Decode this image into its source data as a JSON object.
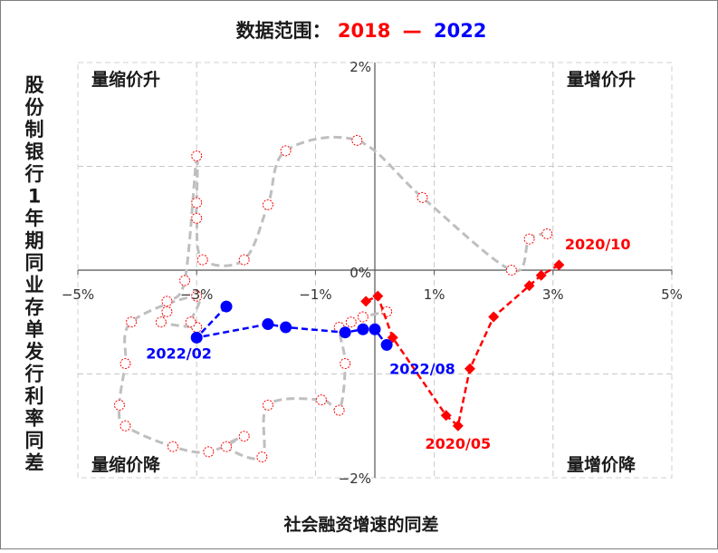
{
  "chart_data": {
    "type": "scatter",
    "title_prefix": "数据范围：",
    "title_start": "2018",
    "title_sep": "—",
    "title_end": "2022",
    "xlabel": "社会融资增速的同差",
    "ylabel": "股份制银行1年期同业存单发行利率同差",
    "xlim": [
      -5,
      5
    ],
    "ylim": [
      -2,
      2
    ],
    "x_ticks": [
      {
        "v": -5,
        "label": "−5%"
      },
      {
        "v": -3,
        "label": "−3%"
      },
      {
        "v": -1,
        "label": "−1%"
      },
      {
        "v": 1,
        "label": "1%"
      },
      {
        "v": 3,
        "label": "3%"
      },
      {
        "v": 5,
        "label": "5%"
      }
    ],
    "y_ticks": [
      {
        "v": 2,
        "label": "2%"
      },
      {
        "v": 0,
        "label": "0%"
      },
      {
        "v": -2,
        "label": "−2%"
      }
    ],
    "quadrants": {
      "top_left": "量缩价升",
      "top_right": "量增价升",
      "bottom_left": "量缩价降",
      "bottom_right": "量增价降"
    },
    "colors": {
      "s2018": "#bfbfbf",
      "s2018_marker": "#ff0000",
      "s2020": "#ff0000",
      "s2022": "#0000ff"
    },
    "series": [
      {
        "id": "s2018",
        "style": "hollow-circle",
        "points": [
          [
            2.9,
            0.35
          ],
          [
            2.6,
            0.3
          ],
          [
            2.3,
            0.0
          ],
          [
            0.8,
            0.7
          ],
          [
            -0.3,
            1.25
          ],
          [
            -1.5,
            1.15
          ],
          [
            -1.8,
            0.63
          ],
          [
            -2.2,
            0.1
          ],
          [
            -2.9,
            0.1
          ],
          [
            -3.0,
            0.5
          ],
          [
            -3.0,
            0.65
          ],
          [
            -3.0,
            1.1
          ],
          [
            -3.2,
            -0.1
          ],
          [
            -3.5,
            -0.3
          ],
          [
            -3.5,
            -0.4
          ],
          [
            -3.6,
            -0.5
          ],
          [
            -3.0,
            -0.55
          ],
          [
            -3.1,
            -0.5
          ],
          [
            -3.0,
            -0.25
          ],
          [
            -4.1,
            -0.5
          ],
          [
            -4.2,
            -0.9
          ],
          [
            -4.3,
            -1.3
          ],
          [
            -4.2,
            -1.5
          ],
          [
            -3.4,
            -1.7
          ],
          [
            -2.8,
            -1.75
          ],
          [
            -2.2,
            -1.6
          ],
          [
            -2.5,
            -1.7
          ],
          [
            -1.9,
            -1.8
          ],
          [
            -1.8,
            -1.3
          ],
          [
            -0.9,
            -1.25
          ],
          [
            -0.6,
            -1.35
          ],
          [
            -0.5,
            -0.9
          ],
          [
            -0.6,
            -0.55
          ],
          [
            -0.4,
            -0.5
          ],
          [
            -0.2,
            -0.45
          ],
          [
            0.2,
            -0.4
          ]
        ]
      },
      {
        "id": "s2020",
        "style": "diamond",
        "points": [
          [
            3.1,
            0.05
          ],
          [
            2.8,
            -0.05
          ],
          [
            2.6,
            -0.15
          ],
          [
            2.0,
            -0.45
          ],
          [
            1.6,
            -0.95
          ],
          [
            1.4,
            -1.5
          ],
          [
            1.2,
            -1.4
          ],
          [
            0.3,
            -0.65
          ],
          [
            0.05,
            -0.25
          ],
          [
            -0.15,
            -0.3
          ]
        ]
      },
      {
        "id": "s2022",
        "style": "filled-circle",
        "points": [
          [
            -2.5,
            -0.35
          ],
          [
            -3.0,
            -0.65
          ],
          [
            -1.8,
            -0.52
          ],
          [
            -1.5,
            -0.55
          ],
          [
            -0.5,
            -0.6
          ],
          [
            -0.2,
            -0.57
          ],
          [
            0.0,
            -0.57
          ],
          [
            0.2,
            -0.72
          ]
        ]
      }
    ],
    "annotations": [
      {
        "text": "2020/10",
        "series": "s2020",
        "at": [
          3.2,
          0.2
        ],
        "anchor": "start"
      },
      {
        "text": "2020/05",
        "series": "s2020",
        "at": [
          1.4,
          -1.72
        ],
        "anchor": "middle"
      },
      {
        "text": "2022/02",
        "series": "s2022",
        "at": [
          -3.3,
          -0.85
        ],
        "anchor": "middle"
      },
      {
        "text": "2022/08",
        "series": "s2022",
        "at": [
          0.8,
          -1.0
        ],
        "anchor": "middle"
      }
    ]
  }
}
